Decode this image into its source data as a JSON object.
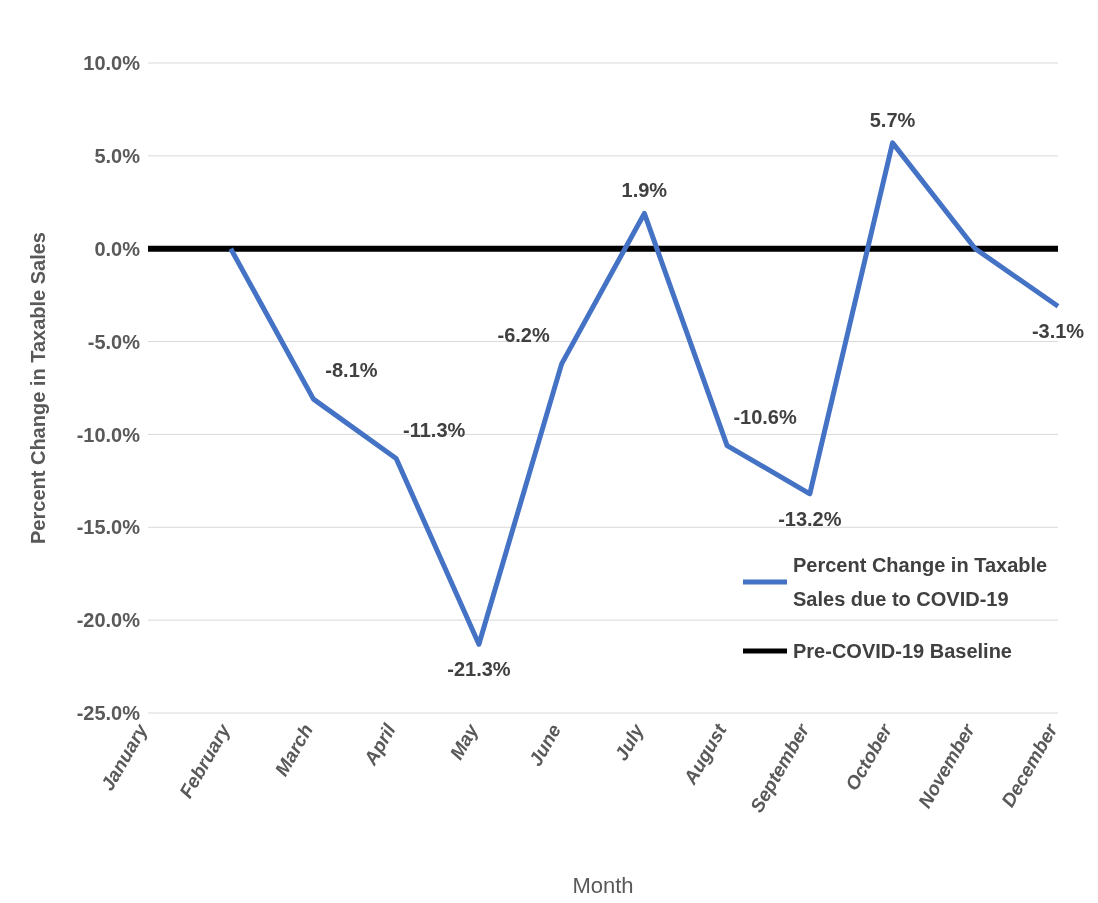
{
  "chart_data": {
    "type": "line",
    "xlabel": "Month",
    "ylabel": "Percent Change in Taxable Sales",
    "categories": [
      "January",
      "February",
      "March",
      "April",
      "May",
      "June",
      "July",
      "August",
      "September",
      "October",
      "November",
      "December"
    ],
    "series": [
      {
        "name": "Percent Change in Taxable Sales due to COVID-19",
        "color": "#4472c4",
        "values": [
          null,
          0,
          -8.1,
          -11.3,
          -21.3,
          -6.2,
          1.9,
          -10.6,
          -13.2,
          5.7,
          0,
          -3.1
        ],
        "value_labels": [
          null,
          null,
          "-8.1%",
          "-11.3%",
          "-21.3%",
          "-6.2%",
          "1.9%",
          "-10.6%",
          "-13.2%",
          "5.7%",
          null,
          "-3.1%"
        ]
      },
      {
        "name": "Pre-COVID-19 Baseline",
        "color": "#000000",
        "values": [
          0,
          0,
          0,
          0,
          0,
          0,
          0,
          0,
          0,
          0,
          0,
          0
        ]
      }
    ],
    "ylim": [
      -25,
      10
    ],
    "yticks": [
      {
        "value": -25,
        "label": "-25.0%"
      },
      {
        "value": -20,
        "label": "-20.0%"
      },
      {
        "value": -15,
        "label": "-15.0%"
      },
      {
        "value": -10,
        "label": "-10.0%"
      },
      {
        "value": -5,
        "label": "-5.0%"
      },
      {
        "value": 0,
        "label": "0.0%"
      },
      {
        "value": 5,
        "label": "5.0%"
      },
      {
        "value": 10,
        "label": "10.0%"
      }
    ],
    "grid": "y",
    "legend": "bottom right",
    "marker": "none",
    "line_style": "solid"
  }
}
